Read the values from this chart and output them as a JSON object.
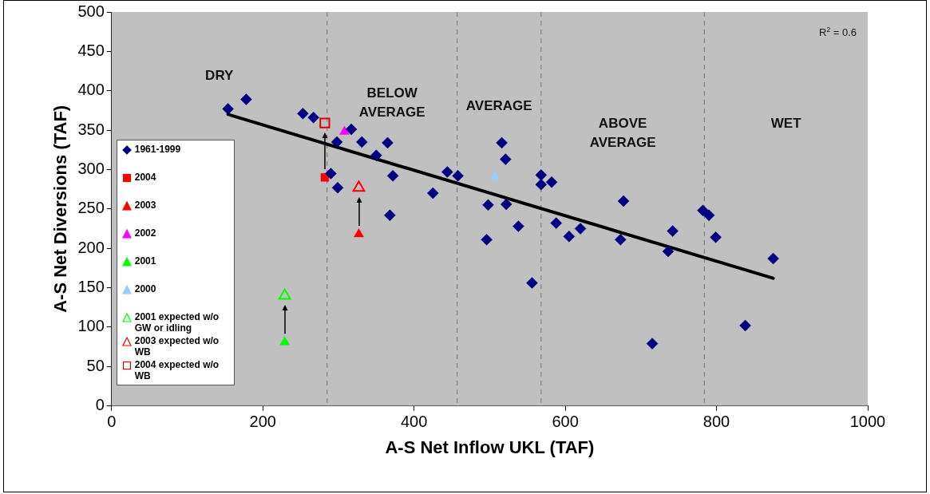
{
  "chart_data": {
    "type": "scatter",
    "xlabel": "A-S Net Inflow UKL (TAF)",
    "ylabel": "A-S Net Diversions (TAF)",
    "xlim": [
      0,
      1000
    ],
    "xticks": [
      0,
      200,
      400,
      600,
      800,
      1000
    ],
    "ylim": [
      0,
      500
    ],
    "yticks": [
      0,
      50,
      100,
      150,
      200,
      250,
      300,
      350,
      400,
      450,
      500
    ],
    "grid": false,
    "legend": "left",
    "series": [
      {
        "name": "1961-1999",
        "color": "#000080",
        "marker": "diamond",
        "x": [
          154,
          178,
          253,
          267,
          317,
          298,
          331,
          365,
          350,
          290,
          299,
          372,
          368,
          425,
          444,
          458,
          516,
          521,
          498,
          522,
          496,
          538,
          556,
          568,
          568,
          582,
          588,
          605,
          620,
          673,
          677,
          715,
          782,
          790,
          799,
          736,
          742,
          838,
          875
        ],
        "values": [
          377,
          389,
          371,
          366,
          351,
          335,
          335,
          334,
          318,
          295,
          277,
          292,
          242,
          270,
          297,
          292,
          334,
          313,
          255,
          256,
          211,
          228,
          156,
          293,
          281,
          284,
          232,
          215,
          225,
          211,
          260,
          79,
          248,
          242,
          214,
          196,
          222,
          102,
          187
        ]
      },
      {
        "name": "2004",
        "color": "#ff0000",
        "marker": "square",
        "x": [
          282
        ],
        "values": [
          290
        ]
      },
      {
        "name": "2003",
        "color": "#ff0000",
        "marker": "triangle",
        "x": [
          327
        ],
        "values": [
          218
        ]
      },
      {
        "name": "2002",
        "color": "#ff00ff",
        "marker": "triangle",
        "x": [
          308
        ],
        "values": [
          348
        ]
      },
      {
        "name": "2001",
        "color": "#00ff00",
        "marker": "triangle",
        "x": [
          229
        ],
        "values": [
          81
        ]
      },
      {
        "name": "2000",
        "color": "#99ccff",
        "marker": "triangle",
        "x": [
          507
        ],
        "values": [
          291
        ]
      },
      {
        "name": "2001 expected w/o GW or idling",
        "color": "#00ff00",
        "marker": "triangle",
        "x": [
          229
        ],
        "values": [
          140
        ]
      },
      {
        "name": "2003 expected w/o WB",
        "color": "#ff0000",
        "marker": "triangle",
        "x": [
          327
        ],
        "values": [
          277
        ]
      },
      {
        "name": "2004 expected w/o WB",
        "color": "#dd0000",
        "marker": "square",
        "x": [
          282
        ],
        "values": [
          359
        ]
      },
      {
        "type": "line",
        "color": "#000000",
        "marker": "none",
        "x": [
          154,
          875
        ],
        "values": [
          370,
          162
        ]
      }
    ],
    "ref_lines": [
      {
        "axis": "x",
        "value": 285,
        "line_style": "dashed",
        "color": "#808080"
      },
      {
        "axis": "x",
        "value": 457,
        "line_style": "dashed",
        "color": "#808080"
      },
      {
        "axis": "x",
        "value": 568,
        "line_style": "dashed",
        "color": "#808080"
      },
      {
        "axis": "x",
        "value": 784,
        "line_style": "dashed",
        "color": "#808080"
      }
    ],
    "annotations": [
      "R$^{2}$ = 0.6",
      "DRY",
      "BELOW\nAVERAGE",
      "AVERAGE",
      "ABOVE\nAVERAGE",
      "WET"
    ]
  }
}
